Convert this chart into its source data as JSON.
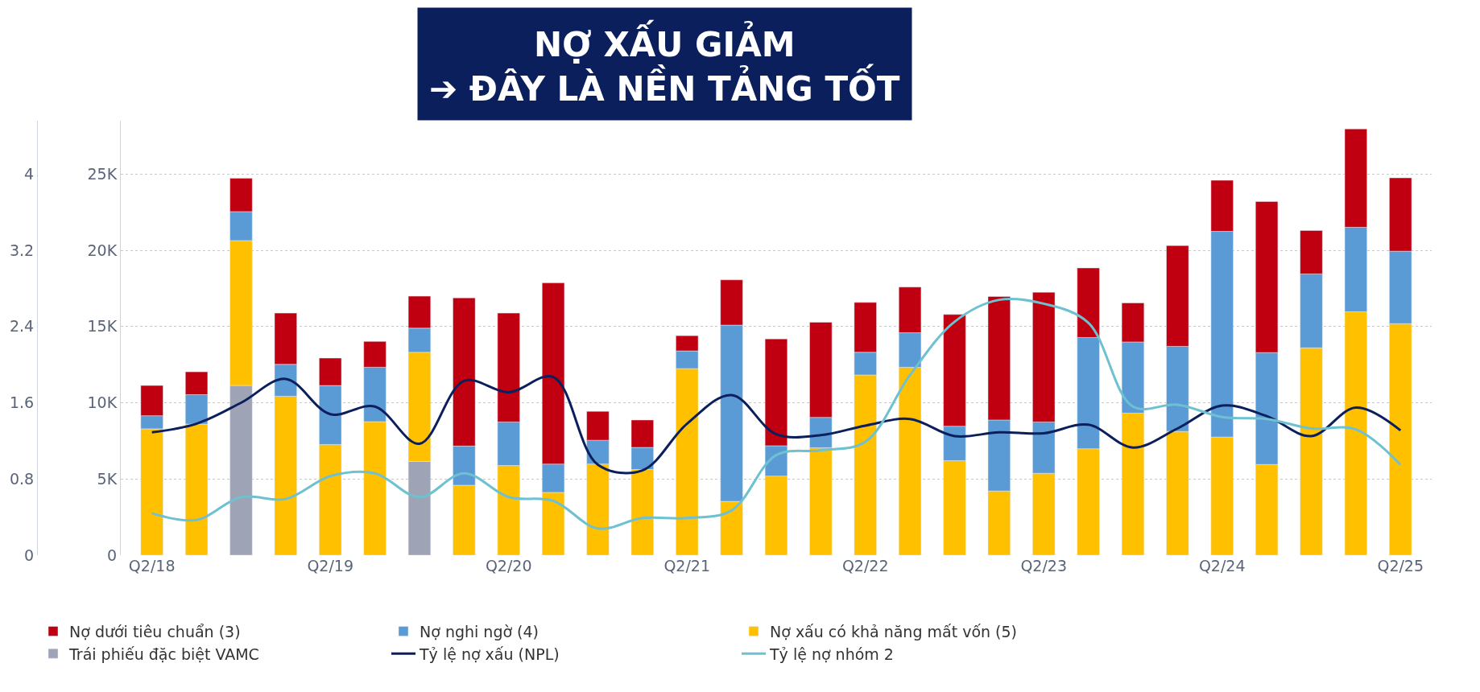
{
  "chart_data": {
    "type": "bar",
    "stacked": true,
    "title": "NỢ XẤU GIẢM\n➔ ĐÂY LÀ NỀN TẢNG TỐT",
    "categories": [
      "Q2/18",
      null,
      null,
      null,
      "Q2/19",
      null,
      null,
      null,
      "Q2/20",
      null,
      null,
      null,
      "Q2/21",
      null,
      null,
      null,
      "Q2/22",
      null,
      null,
      null,
      "Q2/23",
      null,
      null,
      null,
      "Q2/24",
      null,
      null,
      null,
      "Q2/25"
    ],
    "series": [
      {
        "name": "Trái phiếu đặc biệt VAMC",
        "color": "#9ea3b5",
        "values": [
          null,
          null,
          11130,
          null,
          null,
          null,
          6150,
          null,
          null,
          null,
          null,
          null,
          null,
          null,
          null,
          null,
          null,
          null,
          null,
          null,
          null,
          null,
          null,
          null,
          null,
          null,
          null,
          null,
          null
        ]
      },
      {
        "name": "Nợ xấu có khả năng mất vốn (5)",
        "color": "#ffc000",
        "values": [
          8290,
          8600,
          9510,
          10430,
          7260,
          8760,
          7160,
          4590,
          5880,
          4120,
          5980,
          5620,
          12240,
          3530,
          5190,
          7050,
          11820,
          12330,
          6200,
          4210,
          5370,
          6980,
          9320,
          8120,
          7750,
          5950,
          13600,
          15970,
          15190
        ]
      },
      {
        "name": "Nợ nghi ngờ (4)",
        "color": "#5b9bd5",
        "values": [
          860,
          1930,
          1900,
          2090,
          3870,
          3570,
          1580,
          2570,
          2860,
          1860,
          1560,
          1450,
          1160,
          11560,
          1990,
          1990,
          1490,
          2260,
          2260,
          4660,
          3370,
          7300,
          4670,
          5580,
          13490,
          7340,
          4850,
          5540,
          4750
        ]
      },
      {
        "name": "Nợ dưới tiêu chuẩn (3)",
        "color": "#c00010",
        "values": [
          1980,
          1500,
          2180,
          3360,
          1800,
          1690,
          2100,
          9720,
          7140,
          11880,
          1900,
          1800,
          1000,
          2970,
          7010,
          6240,
          3270,
          3000,
          7330,
          8100,
          8510,
          4560,
          2560,
          6610,
          3350,
          9910,
          2850,
          6450,
          4810
        ]
      },
      {
        "name": "Tỷ lệ nợ xấu (NPL)",
        "type": "line",
        "axis": "y2",
        "color": "#0a1f5c",
        "values": [
          1.29,
          1.38,
          1.6,
          1.85,
          1.48,
          1.56,
          1.17,
          1.83,
          1.71,
          1.87,
          0.95,
          0.89,
          1.38,
          1.68,
          1.27,
          1.26,
          1.36,
          1.43,
          1.25,
          1.29,
          1.28,
          1.37,
          1.13,
          1.33,
          1.57,
          1.46,
          1.25,
          1.55,
          1.31
        ]
      },
      {
        "name": "Tỷ lệ nợ nhóm 2",
        "type": "line",
        "axis": "y2",
        "color": "#6ec1d0",
        "values": [
          0.44,
          0.37,
          0.61,
          0.59,
          0.83,
          0.86,
          0.61,
          0.86,
          0.61,
          0.57,
          0.28,
          0.39,
          0.39,
          0.47,
          1.05,
          1.1,
          1.19,
          1.89,
          2.45,
          2.68,
          2.64,
          2.44,
          1.56,
          1.58,
          1.45,
          1.43,
          1.33,
          1.32,
          0.95
        ]
      }
    ],
    "ylim": [
      0,
      28500
    ],
    "yticks": [
      0,
      {
        "value": 5000,
        "label": "5K"
      },
      {
        "value": 10000,
        "label": "10K"
      },
      {
        "value": 15000,
        "label": "15K"
      },
      {
        "value": 20000,
        "label": "20K"
      },
      {
        "value": 25000,
        "label": "25K"
      }
    ],
    "y2lim": [
      0,
      4.56
    ],
    "y2ticks": [
      0,
      0.8,
      1.6,
      2.4,
      3.2,
      4
    ],
    "grid": "y",
    "legend": "bottom",
    "marker": "none",
    "line_style": "solid"
  }
}
